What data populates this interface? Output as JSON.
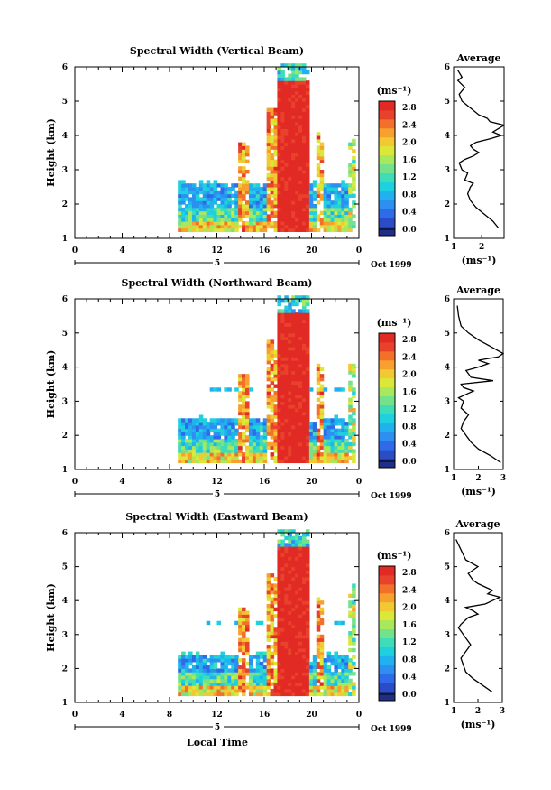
{
  "chart_data": [
    {
      "type": "heatmap",
      "title": "Spectral Width (Vertical Beam)",
      "ylabel": "Height (km)",
      "xlim": [
        0,
        24
      ],
      "ylim": [
        1,
        6
      ],
      "x_ticks": [
        "0",
        "4",
        "8",
        "12",
        "16",
        "20",
        "0"
      ],
      "y_ticks": [
        "1",
        "2",
        "3",
        "4",
        "5",
        "6"
      ],
      "date_day": "5",
      "date_label": "Oct 1999",
      "colorbar": {
        "label": "(ms⁻¹)",
        "range": [
          0,
          2.8
        ],
        "ticks": [
          "0.0",
          "0.4",
          "0.8",
          "1.2",
          "1.6",
          "2.0",
          "2.4",
          "2.8"
        ]
      },
      "average_profile": {
        "title": "Average",
        "xlabel": "(ms⁻¹)",
        "xlim": [
          1,
          2.8
        ],
        "x_ticks": [
          "1",
          "2"
        ],
        "y_ticks": [
          "1",
          "2",
          "3",
          "4",
          "5",
          "6"
        ],
        "x": [
          2.6,
          2.4,
          2.1,
          1.8,
          1.6,
          1.5,
          1.6,
          1.7,
          1.4,
          1.5,
          1.3,
          1.2,
          1.4,
          1.7,
          1.9,
          1.7,
          1.6,
          1.8,
          2.3,
          2.7,
          2.4,
          2.8,
          2.3,
          2.2,
          1.9,
          1.6,
          1.3,
          1.2,
          1.4,
          1.15,
          1.3,
          1.15
        ],
        "y": [
          1.3,
          1.5,
          1.7,
          1.9,
          2.1,
          2.3,
          2.5,
          2.6,
          2.7,
          2.9,
          3.0,
          3.2,
          3.3,
          3.4,
          3.5,
          3.6,
          3.7,
          3.8,
          3.9,
          4.0,
          4.1,
          4.3,
          4.4,
          4.5,
          4.6,
          4.8,
          5.0,
          5.2,
          5.4,
          5.6,
          5.7,
          5.9
        ]
      }
    },
    {
      "type": "heatmap",
      "title": "Spectral Width (Northward Beam)",
      "ylabel": "Height (km)",
      "xlim": [
        0,
        24
      ],
      "ylim": [
        1,
        6
      ],
      "x_ticks": [
        "0",
        "4",
        "8",
        "12",
        "16",
        "20",
        "0"
      ],
      "y_ticks": [
        "1",
        "2",
        "3",
        "4",
        "5",
        "6"
      ],
      "date_day": "5",
      "date_label": "Oct 1999",
      "colorbar": {
        "label": "(ms⁻¹)",
        "range": [
          0,
          2.8
        ],
        "ticks": [
          "0.0",
          "0.4",
          "0.8",
          "1.2",
          "1.6",
          "2.0",
          "2.4",
          "2.8"
        ]
      },
      "average_profile": {
        "title": "Average",
        "xlabel": "(ms⁻¹)",
        "xlim": [
          1,
          3
        ],
        "x_ticks": [
          "1",
          "2",
          "3"
        ],
        "y_ticks": [
          "1",
          "2",
          "3",
          "4",
          "5",
          "6"
        ],
        "x": [
          2.9,
          2.5,
          2.0,
          1.7,
          1.5,
          1.3,
          1.4,
          1.6,
          1.3,
          1.4,
          1.2,
          1.5,
          1.8,
          1.4,
          1.3,
          2.6,
          1.7,
          1.5,
          2.0,
          2.4,
          2.0,
          2.8,
          3.0,
          2.5,
          2.0,
          1.6,
          1.3,
          1.2,
          1.15
        ],
        "y": [
          1.2,
          1.4,
          1.6,
          1.8,
          2.0,
          2.2,
          2.4,
          2.6,
          2.8,
          3.0,
          3.1,
          3.2,
          3.3,
          3.4,
          3.5,
          3.6,
          3.7,
          3.9,
          4.0,
          4.1,
          4.2,
          4.3,
          4.4,
          4.6,
          4.8,
          5.0,
          5.2,
          5.5,
          5.8
        ]
      }
    },
    {
      "type": "heatmap",
      "title": "Spectral Width (Eastward Beam)",
      "ylabel": "Height (km)",
      "xlabel": "Local Time",
      "xlim": [
        0,
        24
      ],
      "ylim": [
        1,
        6
      ],
      "x_ticks": [
        "0",
        "4",
        "8",
        "12",
        "16",
        "20",
        "0"
      ],
      "y_ticks": [
        "1",
        "2",
        "3",
        "4",
        "5",
        "6"
      ],
      "date_day": "5",
      "date_label": "Oct 1999",
      "colorbar": {
        "label": "(ms⁻¹)",
        "range": [
          0,
          2.8
        ],
        "ticks": [
          "0.0",
          "0.4",
          "0.8",
          "1.2",
          "1.6",
          "2.0",
          "2.4",
          "2.8"
        ]
      },
      "average_profile": {
        "title": "Average",
        "xlabel": "(ms⁻¹)",
        "xlim": [
          1,
          3
        ],
        "x_ticks": [
          "1",
          "2",
          "3"
        ],
        "y_ticks": [
          "1",
          "2",
          "3",
          "4",
          "5",
          "6"
        ],
        "x": [
          2.6,
          2.2,
          1.8,
          1.5,
          1.4,
          1.3,
          1.5,
          1.7,
          1.5,
          1.3,
          1.2,
          1.3,
          1.6,
          2.0,
          1.8,
          1.5,
          2.3,
          2.6,
          2.9,
          2.4,
          2.6,
          2.0,
          1.8,
          1.6,
          2.0,
          1.5,
          1.3,
          1.1
        ],
        "y": [
          1.3,
          1.5,
          1.7,
          1.9,
          2.1,
          2.3,
          2.5,
          2.7,
          2.9,
          3.1,
          3.2,
          3.3,
          3.5,
          3.6,
          3.7,
          3.8,
          3.9,
          4.0,
          4.1,
          4.2,
          4.3,
          4.5,
          4.6,
          4.8,
          5.0,
          5.2,
          5.5,
          5.8
        ]
      }
    }
  ]
}
